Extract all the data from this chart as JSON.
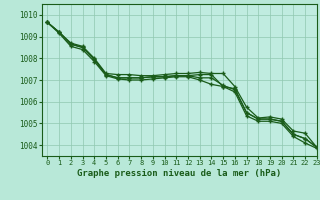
{
  "title": "Graphe pression niveau de la mer (hPa)",
  "background_color": "#b8e8d8",
  "plot_bg_color": "#c0ece0",
  "grid_color": "#90c8b0",
  "line_color": "#1a5c1a",
  "marker_color": "#1a5c1a",
  "xlim": [
    -0.5,
    23
  ],
  "ylim": [
    1003.5,
    1010.5
  ],
  "yticks": [
    1004,
    1005,
    1006,
    1007,
    1008,
    1009,
    1010
  ],
  "xticks": [
    0,
    1,
    2,
    3,
    4,
    5,
    6,
    7,
    8,
    9,
    10,
    11,
    12,
    13,
    14,
    15,
    16,
    17,
    18,
    19,
    20,
    21,
    22,
    23
  ],
  "series": [
    [
      1009.65,
      1009.2,
      1008.7,
      1008.55,
      1008.0,
      1007.3,
      1007.25,
      1007.25,
      1007.2,
      1007.2,
      1007.25,
      1007.3,
      1007.3,
      1007.35,
      1007.3,
      1007.3,
      1006.7,
      1005.75,
      1005.25,
      1005.3,
      1005.2,
      1004.65,
      1004.55,
      1003.9
    ],
    [
      1009.65,
      1009.2,
      1008.65,
      1008.5,
      1007.95,
      1007.25,
      1007.1,
      1007.1,
      1007.1,
      1007.15,
      1007.15,
      1007.2,
      1007.2,
      1007.25,
      1007.25,
      1006.7,
      1006.6,
      1005.5,
      1005.2,
      1005.2,
      1005.1,
      1004.5,
      1004.3,
      1003.9
    ],
    [
      1009.65,
      1009.2,
      1008.65,
      1008.5,
      1007.95,
      1007.25,
      1007.1,
      1007.1,
      1007.1,
      1007.15,
      1007.15,
      1007.2,
      1007.2,
      1007.1,
      1007.1,
      1006.75,
      1006.55,
      1005.5,
      1005.2,
      1005.2,
      1005.1,
      1004.5,
      1004.3,
      1003.9
    ],
    [
      1009.65,
      1009.15,
      1008.55,
      1008.4,
      1007.85,
      1007.2,
      1007.05,
      1007.0,
      1007.0,
      1007.05,
      1007.1,
      1007.15,
      1007.15,
      1007.0,
      1006.8,
      1006.7,
      1006.45,
      1005.35,
      1005.1,
      1005.1,
      1005.0,
      1004.4,
      1004.1,
      1003.85
    ]
  ]
}
